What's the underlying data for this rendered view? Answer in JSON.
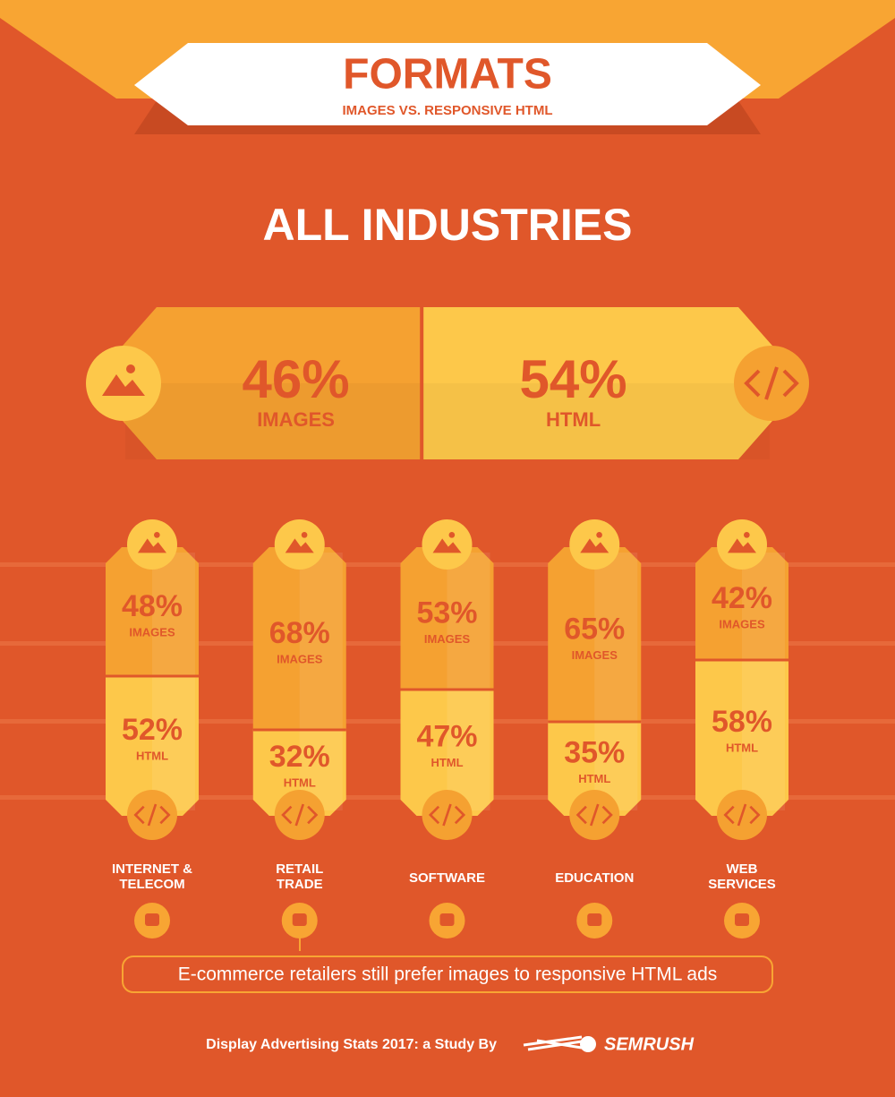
{
  "header": {
    "title": "FORMATS",
    "subtitle": "IMAGES VS. RESPONSIVE HTML"
  },
  "chart_data": [
    {
      "type": "split",
      "title": "ALL INDUSTRIES",
      "series": [
        {
          "name": "IMAGES",
          "color": "#f5a131",
          "values": [
            46
          ],
          "value_labels": [
            "46%"
          ]
        },
        {
          "name": "HTML",
          "color": "#fdc84a",
          "values": [
            54
          ],
          "value_labels": [
            "54%"
          ]
        }
      ]
    },
    {
      "type": "stacked-column",
      "categories": [
        "INTERNET & TELECOM",
        "RETAIL TRADE",
        "SOFTWARE",
        "EDUCATION",
        "WEB SERVICES"
      ],
      "series": [
        {
          "name": "IMAGES",
          "color": "#f5a131",
          "values": [
            48,
            68,
            53,
            65,
            42
          ],
          "value_labels": [
            "48%",
            "68%",
            "53%",
            "65%",
            "42%"
          ]
        },
        {
          "name": "HTML",
          "color": "#fdc84a",
          "values": [
            52,
            32,
            47,
            35,
            58
          ],
          "value_labels": [
            "52%",
            "32%",
            "47%",
            "35%",
            "58%"
          ]
        }
      ]
    }
  ],
  "annotation": "E-commerce retailers still prefer images to responsive HTML ads",
  "footer": {
    "text": "Display Advertising Stats 2017: a Study By",
    "brand": "SEMRUSH"
  }
}
